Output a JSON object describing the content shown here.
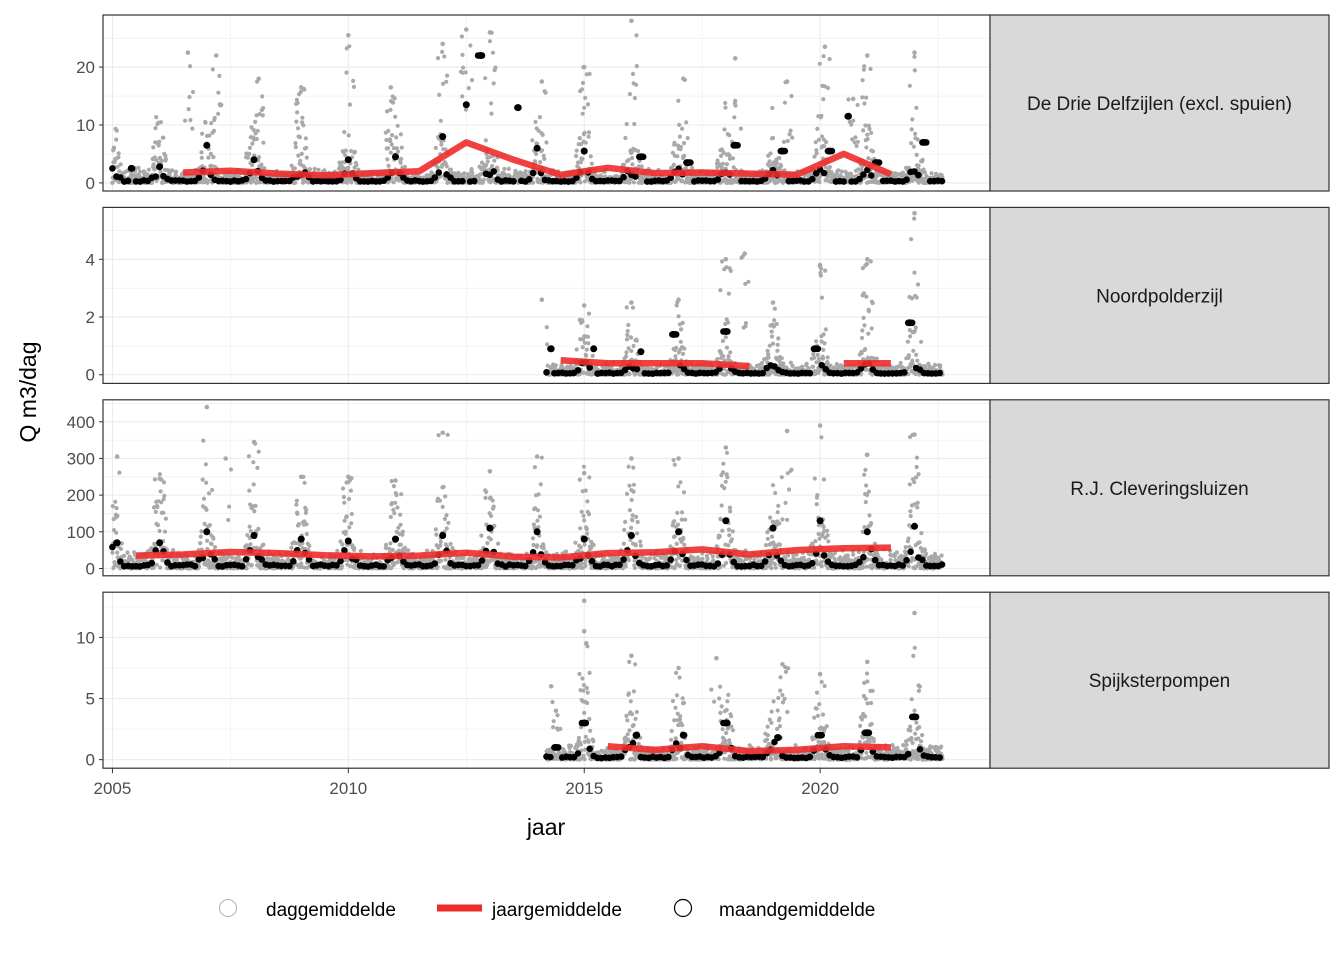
{
  "chart_data": {
    "type": "scatter",
    "xlabel": "jaar",
    "ylabel": "Q m3/dag",
    "xlim": [
      2004.8,
      2023.6
    ],
    "x_ticks": [
      2005,
      2010,
      2015,
      2020
    ],
    "x_tick_labels": [
      "2005",
      "2010",
      "2015",
      "2020"
    ],
    "grid": true,
    "legend_position": "bottom",
    "legend": [
      {
        "key": "daily",
        "label": "daggemiddelde",
        "symbol": "open-circle",
        "color": "#b3b3b3"
      },
      {
        "key": "annual",
        "label": "jaargemiddelde",
        "symbol": "line",
        "color": "#ee2b2b"
      },
      {
        "key": "monthly",
        "label": "maandgemiddelde",
        "symbol": "open-circle",
        "color": "#000000"
      }
    ],
    "colors": {
      "daily": "#a9a9a9",
      "monthly": "#000000",
      "annual": "#ee2b2b",
      "strip_bg": "#d9d9d9",
      "panel_border": "#333333",
      "grid": "#ebebeb"
    },
    "panels": [
      {
        "name": "De Drie Delfzijlen (excl. spuien)",
        "ylim": [
          -1.4,
          29.0
        ],
        "y_ticks": [
          0,
          10,
          20
        ],
        "y_tick_labels": [
          "0",
          "10",
          "20"
        ],
        "daily_range": [
          2005.0,
          2022.6
        ],
        "annual": [
          {
            "x": 2006.5,
            "y": 1.8
          },
          {
            "x": 2007.5,
            "y": 2.1
          },
          {
            "x": 2008.5,
            "y": 1.6
          },
          {
            "x": 2009.5,
            "y": 1.3
          },
          {
            "x": 2010.5,
            "y": 1.7
          },
          {
            "x": 2011.5,
            "y": 2.0
          },
          {
            "x": 2012.5,
            "y": 7.0
          },
          {
            "x": 2013.5,
            "y": 4.0
          },
          {
            "x": 2014.5,
            "y": 1.4
          },
          {
            "x": 2015.5,
            "y": 2.6
          },
          {
            "x": 2016.5,
            "y": 1.7
          },
          {
            "x": 2017.5,
            "y": 1.8
          },
          {
            "x": 2018.5,
            "y": 1.6
          },
          {
            "x": 2019.5,
            "y": 1.4
          },
          {
            "x": 2020.5,
            "y": 5.0
          },
          {
            "x": 2021.5,
            "y": 1.5
          }
        ],
        "monthly_peaks": [
          {
            "x": 2005.4,
            "y": 2.5
          },
          {
            "x": 2006.0,
            "y": 2.8
          },
          {
            "x": 2007.0,
            "y": 6.5
          },
          {
            "x": 2008.0,
            "y": 4.0
          },
          {
            "x": 2010.0,
            "y": 4.0
          },
          {
            "x": 2011.0,
            "y": 4.5
          },
          {
            "x": 2012.0,
            "y": 8.0
          },
          {
            "x": 2012.5,
            "y": 13.5
          },
          {
            "x": 2012.8,
            "y": 22.0
          },
          {
            "x": 2013.6,
            "y": 13.0
          },
          {
            "x": 2014.0,
            "y": 6.0
          },
          {
            "x": 2015.0,
            "y": 5.5
          },
          {
            "x": 2016.2,
            "y": 4.5
          },
          {
            "x": 2017.2,
            "y": 3.5
          },
          {
            "x": 2018.2,
            "y": 6.5
          },
          {
            "x": 2019.2,
            "y": 5.5
          },
          {
            "x": 2020.2,
            "y": 5.5
          },
          {
            "x": 2020.6,
            "y": 11.5
          },
          {
            "x": 2021.2,
            "y": 3.5
          },
          {
            "x": 2022.2,
            "y": 7.0
          }
        ],
        "daily_peaks": [
          {
            "x": 2006.6,
            "y": 22.5
          },
          {
            "x": 2007.2,
            "y": 22.0
          },
          {
            "x": 2008.1,
            "y": 18.0
          },
          {
            "x": 2009.0,
            "y": 16.5
          },
          {
            "x": 2010.0,
            "y": 25.5
          },
          {
            "x": 2010.9,
            "y": 16.5
          },
          {
            "x": 2012.0,
            "y": 24.0
          },
          {
            "x": 2012.5,
            "y": 26.5
          },
          {
            "x": 2013.0,
            "y": 26.0
          },
          {
            "x": 2014.1,
            "y": 17.5
          },
          {
            "x": 2015.0,
            "y": 20.0
          },
          {
            "x": 2016.0,
            "y": 28.0
          },
          {
            "x": 2017.1,
            "y": 18.0
          },
          {
            "x": 2018.2,
            "y": 21.5
          },
          {
            "x": 2019.3,
            "y": 17.5
          },
          {
            "x": 2020.1,
            "y": 23.5
          },
          {
            "x": 2020.7,
            "y": 14.5
          },
          {
            "x": 2021.0,
            "y": 22.0
          },
          {
            "x": 2022.0,
            "y": 22.5
          }
        ],
        "typical_daily": 3.0,
        "typical_monthly": 1.2
      },
      {
        "name": "Noordpolderzijl",
        "ylim": [
          -0.3,
          5.8
        ],
        "y_ticks": [
          0,
          2,
          4
        ],
        "y_tick_labels": [
          "0",
          "2",
          "4"
        ],
        "daily_range": [
          2014.2,
          2022.6
        ],
        "annual_segments": [
          [
            {
              "x": 2014.5,
              "y": 0.5
            },
            {
              "x": 2015.5,
              "y": 0.4
            },
            {
              "x": 2016.5,
              "y": 0.4
            },
            {
              "x": 2017.5,
              "y": 0.4
            },
            {
              "x": 2018.5,
              "y": 0.3
            }
          ],
          [
            {
              "x": 2020.5,
              "y": 0.4
            },
            {
              "x": 2021.5,
              "y": 0.4
            }
          ]
        ],
        "monthly_peaks": [
          {
            "x": 2014.3,
            "y": 0.9
          },
          {
            "x": 2015.2,
            "y": 0.9
          },
          {
            "x": 2016.2,
            "y": 0.8
          },
          {
            "x": 2016.9,
            "y": 1.4
          },
          {
            "x": 2018.0,
            "y": 1.5
          },
          {
            "x": 2019.9,
            "y": 0.9
          },
          {
            "x": 2021.9,
            "y": 1.8
          }
        ],
        "daily_peaks": [
          {
            "x": 2014.1,
            "y": 2.6
          },
          {
            "x": 2015.0,
            "y": 2.4
          },
          {
            "x": 2016.0,
            "y": 2.5
          },
          {
            "x": 2017.0,
            "y": 2.6
          },
          {
            "x": 2018.0,
            "y": 4.0
          },
          {
            "x": 2018.4,
            "y": 4.2
          },
          {
            "x": 2019.0,
            "y": 2.5
          },
          {
            "x": 2020.0,
            "y": 3.8
          },
          {
            "x": 2021.0,
            "y": 4.0
          },
          {
            "x": 2022.0,
            "y": 5.6
          }
        ],
        "typical_daily": 0.5,
        "typical_monthly": 0.2
      },
      {
        "name": "R.J. Cleveringsluizen",
        "ylim": [
          -20,
          460
        ],
        "y_ticks": [
          0,
          100,
          200,
          300,
          400
        ],
        "y_tick_labels": [
          "0",
          "100",
          "200",
          "300",
          "400"
        ],
        "daily_range": [
          2005.0,
          2022.6
        ],
        "annual": [
          {
            "x": 2005.5,
            "y": 35
          },
          {
            "x": 2006.5,
            "y": 38
          },
          {
            "x": 2007.5,
            "y": 45
          },
          {
            "x": 2008.5,
            "y": 42
          },
          {
            "x": 2009.5,
            "y": 36
          },
          {
            "x": 2010.5,
            "y": 33
          },
          {
            "x": 2011.5,
            "y": 35
          },
          {
            "x": 2012.5,
            "y": 43
          },
          {
            "x": 2013.5,
            "y": 32
          },
          {
            "x": 2014.5,
            "y": 30
          },
          {
            "x": 2015.5,
            "y": 42
          },
          {
            "x": 2016.5,
            "y": 44
          },
          {
            "x": 2017.5,
            "y": 52
          },
          {
            "x": 2018.5,
            "y": 38
          },
          {
            "x": 2019.5,
            "y": 50
          },
          {
            "x": 2020.5,
            "y": 55
          },
          {
            "x": 2021.5,
            "y": 57
          }
        ],
        "monthly_peaks": [
          {
            "x": 2005.1,
            "y": 70
          },
          {
            "x": 2006.0,
            "y": 70
          },
          {
            "x": 2007.0,
            "y": 100
          },
          {
            "x": 2008.0,
            "y": 90
          },
          {
            "x": 2009.0,
            "y": 80
          },
          {
            "x": 2010.0,
            "y": 75
          },
          {
            "x": 2011.0,
            "y": 80
          },
          {
            "x": 2012.0,
            "y": 90
          },
          {
            "x": 2013.0,
            "y": 110
          },
          {
            "x": 2014.0,
            "y": 100
          },
          {
            "x": 2015.0,
            "y": 80
          },
          {
            "x": 2016.0,
            "y": 90
          },
          {
            "x": 2017.0,
            "y": 100
          },
          {
            "x": 2018.0,
            "y": 130
          },
          {
            "x": 2019.0,
            "y": 110
          },
          {
            "x": 2020.0,
            "y": 130
          },
          {
            "x": 2021.0,
            "y": 100
          },
          {
            "x": 2022.0,
            "y": 115
          }
        ],
        "daily_peaks": [
          {
            "x": 2005.1,
            "y": 305
          },
          {
            "x": 2006.0,
            "y": 245
          },
          {
            "x": 2007.0,
            "y": 440
          },
          {
            "x": 2007.4,
            "y": 300
          },
          {
            "x": 2008.0,
            "y": 345
          },
          {
            "x": 2009.0,
            "y": 250
          },
          {
            "x": 2010.0,
            "y": 250
          },
          {
            "x": 2011.0,
            "y": 240
          },
          {
            "x": 2012.0,
            "y": 370
          },
          {
            "x": 2013.0,
            "y": 265
          },
          {
            "x": 2014.0,
            "y": 305
          },
          {
            "x": 2015.0,
            "y": 260
          },
          {
            "x": 2016.0,
            "y": 300
          },
          {
            "x": 2017.0,
            "y": 300
          },
          {
            "x": 2018.0,
            "y": 330
          },
          {
            "x": 2019.3,
            "y": 375
          },
          {
            "x": 2020.0,
            "y": 390
          },
          {
            "x": 2021.0,
            "y": 310
          },
          {
            "x": 2022.0,
            "y": 365
          }
        ],
        "typical_daily": 60,
        "typical_monthly": 30
      },
      {
        "name": "Spijksterpompen",
        "ylim": [
          -0.7,
          13.7
        ],
        "y_ticks": [
          0,
          5,
          10
        ],
        "y_tick_labels": [
          "0",
          "5",
          "10"
        ],
        "daily_range": [
          2014.2,
          2022.6
        ],
        "annual": [
          {
            "x": 2015.5,
            "y": 1.1
          },
          {
            "x": 2016.5,
            "y": 0.8
          },
          {
            "x": 2017.5,
            "y": 1.1
          },
          {
            "x": 2018.5,
            "y": 0.7
          },
          {
            "x": 2019.5,
            "y": 0.8
          },
          {
            "x": 2020.5,
            "y": 1.1
          },
          {
            "x": 2021.5,
            "y": 1.0
          }
        ],
        "monthly_peaks": [
          {
            "x": 2014.4,
            "y": 1.0
          },
          {
            "x": 2015.0,
            "y": 3.0
          },
          {
            "x": 2016.1,
            "y": 2.0
          },
          {
            "x": 2017.1,
            "y": 2.0
          },
          {
            "x": 2018.0,
            "y": 3.0
          },
          {
            "x": 2019.1,
            "y": 1.8
          },
          {
            "x": 2020.0,
            "y": 2.0
          },
          {
            "x": 2021.0,
            "y": 2.2
          },
          {
            "x": 2022.0,
            "y": 3.5
          }
        ],
        "daily_peaks": [
          {
            "x": 2014.3,
            "y": 6.0
          },
          {
            "x": 2014.4,
            "y": 4.0
          },
          {
            "x": 2015.0,
            "y": 13.0
          },
          {
            "x": 2015.0,
            "y": 10.5
          },
          {
            "x": 2016.0,
            "y": 8.5
          },
          {
            "x": 2017.0,
            "y": 7.5
          },
          {
            "x": 2017.8,
            "y": 8.3
          },
          {
            "x": 2019.2,
            "y": 7.8
          },
          {
            "x": 2020.0,
            "y": 7.0
          },
          {
            "x": 2021.0,
            "y": 8.0
          },
          {
            "x": 2022.0,
            "y": 12.0
          }
        ],
        "typical_daily": 1.5,
        "typical_monthly": 0.7
      }
    ]
  }
}
